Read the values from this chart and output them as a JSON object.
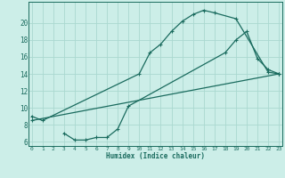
{
  "xlabel": "Humidex (Indice chaleur)",
  "bg_color": "#cceee8",
  "line_color": "#1a6b5e",
  "grid_color": "#aad8d0",
  "series": [
    {
      "x": [
        0,
        1,
        10,
        11,
        12,
        13,
        14,
        15,
        16,
        17,
        19,
        22,
        23
      ],
      "y": [
        9.0,
        8.5,
        14.0,
        16.5,
        17.5,
        19.0,
        20.2,
        21.0,
        21.5,
        21.2,
        20.5,
        14.2,
        14.0
      ]
    },
    {
      "x": [
        3,
        4,
        5,
        6,
        7,
        8,
        9,
        18,
        19,
        20,
        21,
        22,
        23
      ],
      "y": [
        7.0,
        6.2,
        6.2,
        6.5,
        6.5,
        7.5,
        10.2,
        16.5,
        18.0,
        19.0,
        15.8,
        14.5,
        14.0
      ]
    },
    {
      "x": [
        0,
        23
      ],
      "y": [
        8.5,
        14.0
      ]
    }
  ],
  "xlim": [
    -0.3,
    23.3
  ],
  "ylim": [
    5.5,
    22.5
  ],
  "yticks": [
    6,
    8,
    10,
    12,
    14,
    16,
    18,
    20
  ],
  "xticks": [
    0,
    1,
    2,
    3,
    4,
    5,
    6,
    7,
    8,
    9,
    10,
    11,
    12,
    13,
    14,
    15,
    16,
    17,
    18,
    19,
    20,
    21,
    22,
    23
  ],
  "xticklabels": [
    "0",
    "1",
    "2",
    "3",
    "4",
    "5",
    "6",
    "7",
    "8",
    "9",
    "10",
    "11",
    "12",
    "13",
    "14",
    "15",
    "16",
    "17",
    "18",
    "19",
    "20",
    "21",
    "22",
    "23"
  ]
}
